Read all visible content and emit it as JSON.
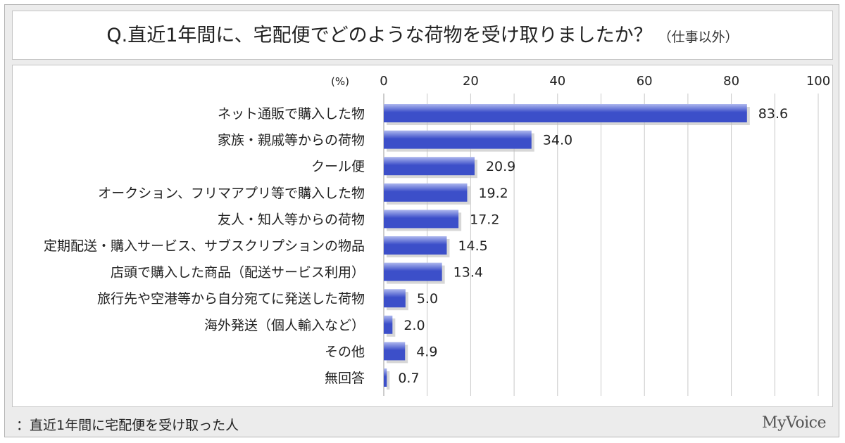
{
  "title": "Q.直近1年間に、宅配便でどのような荷物を受け取りましたか？",
  "title_note": "（仕事以外）",
  "footer_note": "：直近1年間に宅配便を受け取った人",
  "brand": "MyVoice",
  "colors": {
    "bar_dark": "#3c4fc9",
    "bar_light": "#aeb8ee",
    "grid": "#c8c8c8",
    "panel_bg": "#ececec"
  },
  "chart_data": {
    "type": "bar",
    "orientation": "horizontal",
    "unit_label": "(%)",
    "xlim": [
      0,
      100
    ],
    "ticks": [
      0,
      20,
      40,
      60,
      80,
      100
    ],
    "tick_labels": [
      "0",
      "20",
      "40",
      "60",
      "80",
      "100"
    ],
    "grid": true,
    "categories": [
      "ネット通販で購入した物",
      "家族・親戚等からの荷物",
      "クール便",
      "オークション、フリマアプリ等で購入した物",
      "友人・知人等からの荷物",
      "定期配送・購入サービス、サブスクリプションの物品",
      "店頭で購入した商品（配送サービス利用）",
      "旅行先や空港等から自分宛てに発送した荷物",
      "海外発送（個人輸入など）",
      "その他",
      "無回答"
    ],
    "values": [
      83.6,
      34.0,
      20.9,
      19.2,
      17.2,
      14.5,
      13.4,
      5.0,
      2.0,
      4.9,
      0.7
    ],
    "value_labels": [
      "83.6",
      "34.0",
      "20.9",
      "19.2",
      "17.2",
      "14.5",
      "13.4",
      "5.0",
      "2.0",
      "4.9",
      "0.7"
    ]
  }
}
